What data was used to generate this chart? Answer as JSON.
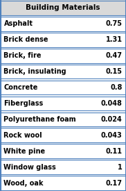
{
  "title": "Building Materials",
  "rows": [
    [
      "Asphalt",
      "0.75"
    ],
    [
      "Brick dense",
      "1.31"
    ],
    [
      "Brick, fire",
      "0.47"
    ],
    [
      "Brick, insulating",
      "0.15"
    ],
    [
      "Concrete",
      "0.8"
    ],
    [
      "Fiberglass",
      "0.048"
    ],
    [
      "Polyurethane foam",
      "0.024"
    ],
    [
      "Rock wool",
      "0.043"
    ],
    [
      "White pine",
      "0.11"
    ],
    [
      "Window glass",
      "1"
    ],
    [
      "Wood, oak",
      "0.17"
    ]
  ],
  "header_bg": "#d9d9d9",
  "row_bg": "#ffffff",
  "border_color": "#4f81bd",
  "text_color": "#000000",
  "title_fontsize": 7.5,
  "row_fontsize": 7.0,
  "figsize": [
    1.82,
    2.75
  ],
  "dpi": 100
}
